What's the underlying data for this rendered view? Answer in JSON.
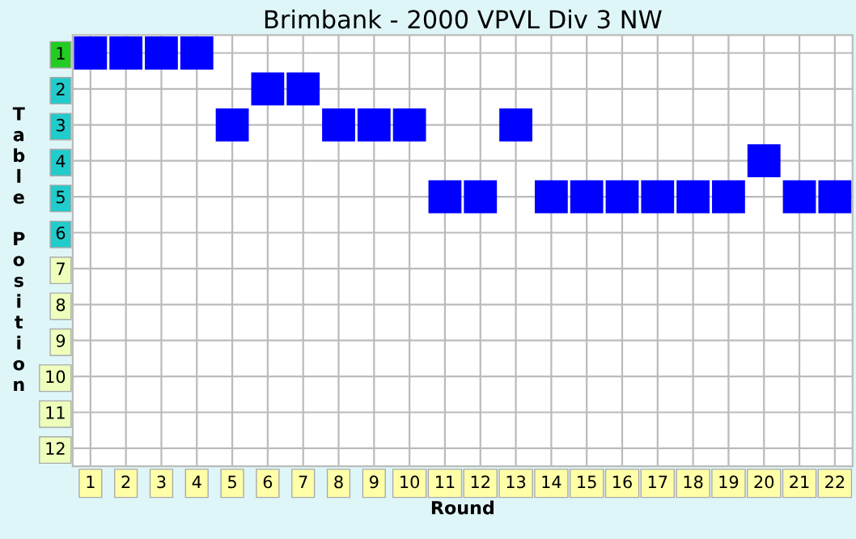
{
  "chart_data": {
    "type": "scatter",
    "title": "Brimbank - 2000 VPVL Div 3 NW",
    "xlabel": "Round",
    "ylabel": "Table Position",
    "categories": [
      "1",
      "2",
      "3",
      "4",
      "5",
      "6",
      "7",
      "8",
      "9",
      "10",
      "11",
      "12",
      "13",
      "14",
      "15",
      "16",
      "17",
      "18",
      "19",
      "20",
      "21",
      "22"
    ],
    "series": [
      {
        "color": "#0000ff",
        "values": [
          1,
          1,
          1,
          1,
          3,
          2,
          2,
          3,
          3,
          3,
          5,
          5,
          3,
          5,
          5,
          5,
          5,
          5,
          5,
          4,
          5,
          5
        ]
      }
    ],
    "ylim": [
      12.5,
      0.5
    ],
    "yticks": [
      1,
      2,
      3,
      4,
      5,
      6,
      7,
      8,
      9,
      10,
      11,
      12
    ],
    "marker": "square",
    "grid": true
  }
}
